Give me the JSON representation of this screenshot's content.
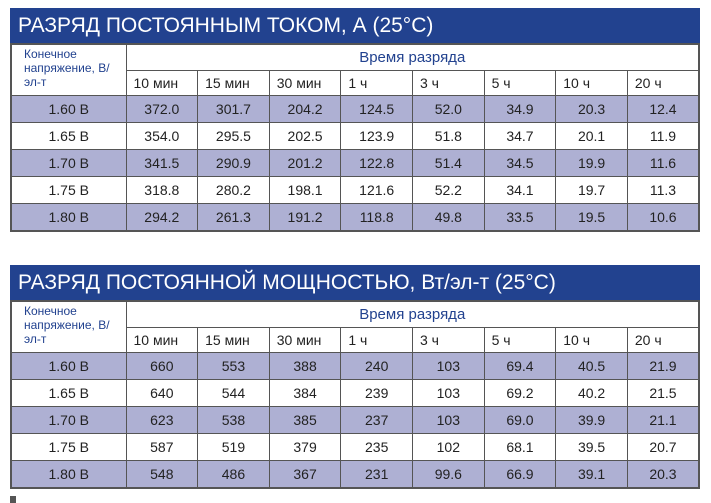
{
  "tables": [
    {
      "title": "РАЗРЯД ПОСТОЯННЫМ ТОКОМ, А (25°C)",
      "row_header": "Конечное напряжение, В/эл-т",
      "group_header": "Время разряда",
      "columns": [
        "10 мин",
        "15 мин",
        "30 мин",
        "1 ч",
        "3 ч",
        "5 ч",
        "10 ч",
        "20 ч"
      ],
      "rows": [
        {
          "voltage": "1.60 В",
          "values": [
            "372.0",
            "301.7",
            "204.2",
            "124.5",
            "52.0",
            "34.9",
            "20.3",
            "12.4"
          ]
        },
        {
          "voltage": "1.65 В",
          "values": [
            "354.0",
            "295.5",
            "202.5",
            "123.9",
            "51.8",
            "34.7",
            "20.1",
            "11.9"
          ]
        },
        {
          "voltage": "1.70 В",
          "values": [
            "341.5",
            "290.9",
            "201.2",
            "122.8",
            "51.4",
            "34.5",
            "19.9",
            "11.6"
          ]
        },
        {
          "voltage": "1.75 В",
          "values": [
            "318.8",
            "280.2",
            "198.1",
            "121.6",
            "52.2",
            "34.1",
            "19.7",
            "11.3"
          ]
        },
        {
          "voltage": "1.80 В",
          "values": [
            "294.2",
            "261.3",
            "191.2",
            "118.8",
            "49.8",
            "33.5",
            "19.5",
            "10.6"
          ]
        }
      ]
    },
    {
      "title": "РАЗРЯД ПОСТОЯННОЙ МОЩНОСТЬЮ, Вт/эл-т (25°C)",
      "row_header": "Конечное напряжение, В/эл-т",
      "group_header": "Время разряда",
      "columns": [
        "10 мин",
        "15 мин",
        "30 мин",
        "1 ч",
        "3 ч",
        "5 ч",
        "10 ч",
        "20 ч"
      ],
      "rows": [
        {
          "voltage": "1.60 В",
          "values": [
            "660",
            "553",
            "388",
            "240",
            "103",
            "69.4",
            "40.5",
            "21.9"
          ]
        },
        {
          "voltage": "1.65 В",
          "values": [
            "640",
            "544",
            "384",
            "239",
            "103",
            "69.2",
            "40.2",
            "21.5"
          ]
        },
        {
          "voltage": "1.70 В",
          "values": [
            "623",
            "538",
            "385",
            "237",
            "103",
            "69.0",
            "39.9",
            "21.1"
          ]
        },
        {
          "voltage": "1.75 В",
          "values": [
            "587",
            "519",
            "379",
            "235",
            "102",
            "68.1",
            "39.5",
            "20.7"
          ]
        },
        {
          "voltage": "1.80 В",
          "values": [
            "548",
            "486",
            "367",
            "231",
            "99.6",
            "66.9",
            "39.1",
            "20.3"
          ]
        }
      ]
    }
  ],
  "colors": {
    "title_bg": "#22428f",
    "highlight_row": "#aeb0d3",
    "header_text": "#22428f"
  }
}
